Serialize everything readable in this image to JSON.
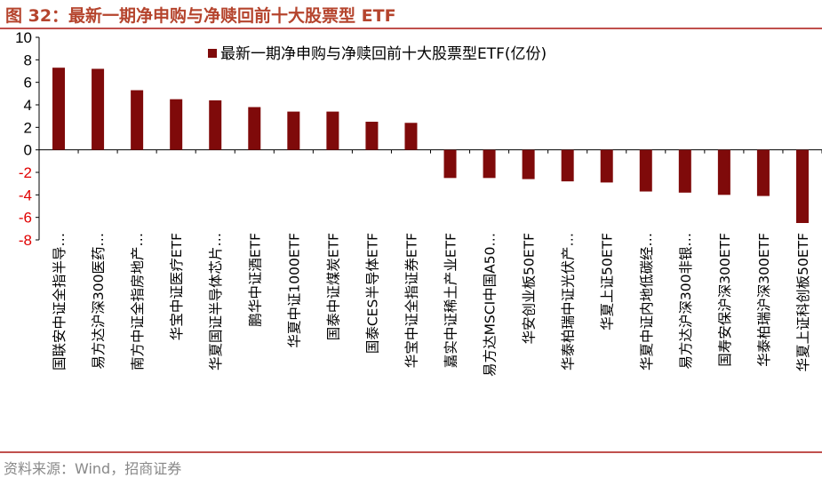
{
  "figure": {
    "title": "图 32：最新一期净申购与净赎回前十大股票型 ETF",
    "source": "资料来源：Wind，招商证券",
    "accent_color": "#c0504d",
    "title_color": "#b5442d"
  },
  "chart_data": {
    "type": "bar",
    "title": "",
    "xlabel": "",
    "ylabel": "",
    "ylim": [
      -8,
      10
    ],
    "yticks": [
      -8,
      -6,
      -4,
      -2,
      0,
      2,
      4,
      6,
      8,
      10
    ],
    "grid": false,
    "legend_position": "top-center",
    "bar_color": "#7f0a0a",
    "negative_tick_color": "#e00000",
    "series": [
      {
        "name": "最新一期净申购与净赎回前十大股票型ETF(亿份)",
        "values": [
          7.3,
          7.2,
          5.3,
          4.5,
          4.4,
          3.8,
          3.4,
          3.4,
          2.5,
          2.4,
          -2.5,
          -2.5,
          -2.6,
          -2.8,
          -2.9,
          -3.7,
          -3.8,
          -4.0,
          -4.1,
          -6.5
        ]
      }
    ],
    "categories": [
      "国联安中证全指半导…",
      "易方达沪深300医药…",
      "南方中证全指房地产…",
      "华宝中证医疗ETF",
      "华夏国证半导体芯片…",
      "鹏华中证酒ETF",
      "华夏中证1000ETF",
      "国泰中证煤炭ETF",
      "国泰CES半导体ETF",
      "华宝中证全指证券ETF",
      "嘉实中证稀土产业ETF",
      "易方达MSCI中国A50…",
      "华安创业板50ETF",
      "华泰柏瑞中证光伏产…",
      "华夏上证50ETF",
      "华夏中证内地低碳经…",
      "易方达沪深300非银…",
      "国寿安保沪深300ETF",
      "华泰柏瑞沪深300ETF",
      "华夏上证科创板50ETF"
    ]
  }
}
